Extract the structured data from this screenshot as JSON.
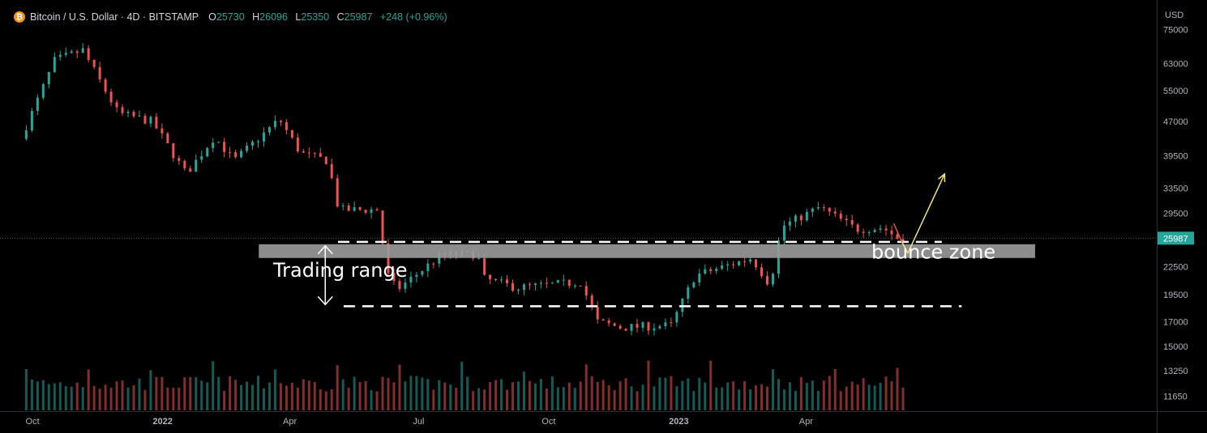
{
  "header": {
    "icon": "bitcoin-icon",
    "title": "Bitcoin / U.S. Dollar · 4D · BITSTAMP",
    "o_label": "O",
    "o": "25730",
    "h_label": "H",
    "h": "26096",
    "l_label": "L",
    "l": "25350",
    "c_label": "C",
    "c": "25987",
    "change": "+248 (+0.96%)"
  },
  "colors": {
    "up": "#26a69a",
    "down": "#ef5350",
    "zone": "#9b9b9b",
    "arrow": "#f5e67a",
    "arrow_red": "#ef5350"
  },
  "chart_data": {
    "type": "candlestick",
    "yscale": "log",
    "ylim": [
      10800,
      86000
    ],
    "xlim": [
      "2021-09-08",
      "2023-12-05"
    ],
    "currency_label": "USD",
    "price_ticks": [
      75000,
      63000,
      55000,
      47000,
      39500,
      33500,
      29500,
      25987,
      22500,
      19500,
      17000,
      15000,
      13250,
      11650
    ],
    "price_tick_labels": [
      "75000",
      "63000",
      "55000",
      "47000",
      "39500",
      "33500",
      "29500",
      "25987",
      "22500",
      "19500",
      "17000",
      "15000",
      "13250",
      "11650"
    ],
    "current_price": 25987,
    "current_price_label": "25987",
    "x_ticks": [
      {
        "date": "2021-10-01",
        "label": "Oct"
      },
      {
        "date": "2022-01-01",
        "label": "2022"
      },
      {
        "date": "2022-04-01",
        "label": "Apr"
      },
      {
        "date": "2022-07-01",
        "label": "Jul"
      },
      {
        "date": "2022-10-01",
        "label": "Oct"
      },
      {
        "date": "2023-01-01",
        "label": "2023"
      },
      {
        "date": "2023-04-01",
        "label": "Apr"
      }
    ],
    "key_prices": [
      {
        "start": "2021-09-26",
        "price": 43000
      },
      {
        "start": "2021-10-12",
        "price": 56000
      },
      {
        "start": "2021-10-20",
        "price": 64000
      },
      {
        "start": "2021-11-09",
        "price": 67500
      },
      {
        "start": "2021-11-22",
        "price": 57000
      },
      {
        "start": "2021-12-04",
        "price": 49000
      },
      {
        "start": "2021-12-28",
        "price": 47000
      },
      {
        "start": "2022-01-21",
        "price": 36000
      },
      {
        "start": "2022-02-10",
        "price": 43500
      },
      {
        "start": "2022-02-24",
        "price": 38500
      },
      {
        "start": "2022-03-28",
        "price": 47500
      },
      {
        "start": "2022-04-12",
        "price": 40000
      },
      {
        "start": "2022-05-01",
        "price": 38500
      },
      {
        "start": "2022-05-09",
        "price": 30000
      },
      {
        "start": "2022-06-05",
        "price": 30000
      },
      {
        "start": "2022-06-13",
        "price": 21500
      },
      {
        "start": "2022-06-19",
        "price": 20000
      },
      {
        "start": "2022-07-20",
        "price": 23800
      },
      {
        "start": "2022-08-15",
        "price": 24000
      },
      {
        "start": "2022-08-19",
        "price": 21200
      },
      {
        "start": "2022-09-12",
        "price": 20200
      },
      {
        "start": "2022-10-27",
        "price": 20800
      },
      {
        "start": "2022-11-08",
        "price": 17000
      },
      {
        "start": "2022-11-25",
        "price": 16500
      },
      {
        "start": "2022-12-30",
        "price": 16700
      },
      {
        "start": "2023-01-16",
        "price": 21500
      },
      {
        "start": "2023-02-25",
        "price": 23500
      },
      {
        "start": "2023-03-10",
        "price": 20500
      },
      {
        "start": "2023-03-18",
        "price": 27500
      },
      {
        "start": "2023-04-14",
        "price": 30400
      },
      {
        "start": "2023-05-10",
        "price": 27200
      },
      {
        "start": "2023-05-29",
        "price": 27400
      },
      {
        "start": "2023-06-08",
        "price": 25987
      }
    ],
    "candle_days": 4,
    "volume_ylim": [
      0,
      100
    ],
    "annotations": {
      "trading_range": "Trading range",
      "bounce_zone": "bounce zone"
    },
    "lines": {
      "upper_dash_price": 25500,
      "lower_dash_price": 18400,
      "zone_top": 25200,
      "zone_bottom": 23500,
      "arrow_from_price": 24100,
      "arrow_to_price": 36000,
      "arrow_from_date": "2023-06-12",
      "arrow_to_date": "2023-07-08",
      "red_arrow_from_date": "2023-06-02",
      "red_arrow_from_price": 28000,
      "red_arrow_to_date": "2023-06-08",
      "red_arrow_to_price": 25400
    }
  }
}
